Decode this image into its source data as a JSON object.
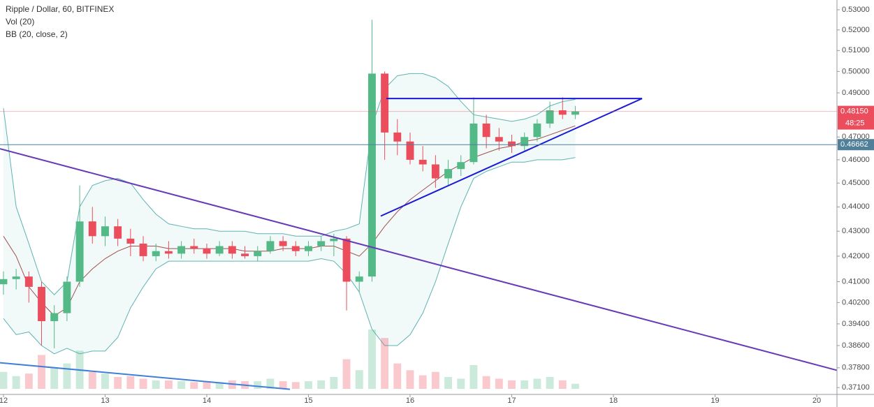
{
  "chart_data": {
    "type": "candlestick",
    "title": "Ripple / Dollar, 60, BITFINEX",
    "indicators": [
      "Vol (20)",
      "BB (20, close, 2)"
    ],
    "log_scale": true,
    "grid": false,
    "up_color": "#53b987",
    "down_color": "#eb4d5c",
    "band_color": "#5fb3b3",
    "x": [
      12.0,
      12.125,
      12.25,
      12.375,
      12.5,
      12.625,
      12.75,
      12.875,
      13.0,
      13.125,
      13.25,
      13.375,
      13.5,
      13.625,
      13.75,
      13.875,
      14.0,
      14.125,
      14.25,
      14.375,
      14.5,
      14.625,
      14.75,
      14.875,
      15.0,
      15.125,
      15.25,
      15.375,
      15.5,
      15.625,
      15.75,
      15.875,
      16.0,
      16.125,
      16.25,
      16.375,
      16.5,
      16.625,
      16.75,
      16.875,
      17.0,
      17.125,
      17.25,
      17.375,
      17.5,
      17.625
    ],
    "open": [
      0.409,
      0.411,
      0.412,
      0.408,
      0.395,
      0.398,
      0.41,
      0.434,
      0.428,
      0.432,
      0.427,
      0.425,
      0.42,
      0.422,
      0.421,
      0.424,
      0.423,
      0.421,
      0.424,
      0.421,
      0.42,
      0.422,
      0.426,
      0.424,
      0.422,
      0.424,
      0.426,
      0.427,
      0.41,
      0.412,
      0.499,
      0.472,
      0.468,
      0.46,
      0.458,
      0.452,
      0.456,
      0.459,
      0.476,
      0.47,
      0.468,
      0.466,
      0.47,
      0.476,
      0.482,
      0.48
    ],
    "high": [
      0.414,
      0.415,
      0.414,
      0.41,
      0.401,
      0.412,
      0.449,
      0.44,
      0.436,
      0.435,
      0.431,
      0.428,
      0.425,
      0.426,
      0.426,
      0.427,
      0.425,
      0.426,
      0.426,
      0.424,
      0.424,
      0.428,
      0.428,
      0.426,
      0.426,
      0.428,
      0.429,
      0.428,
      0.414,
      0.525,
      0.5,
      0.478,
      0.472,
      0.466,
      0.462,
      0.46,
      0.462,
      0.488,
      0.48,
      0.474,
      0.471,
      0.472,
      0.478,
      0.486,
      0.488,
      0.484
    ],
    "low": [
      0.405,
      0.407,
      0.402,
      0.386,
      0.385,
      0.395,
      0.408,
      0.425,
      0.424,
      0.424,
      0.42,
      0.418,
      0.418,
      0.419,
      0.419,
      0.421,
      0.419,
      0.42,
      0.419,
      0.419,
      0.418,
      0.421,
      0.422,
      0.42,
      0.42,
      0.422,
      0.42,
      0.399,
      0.406,
      0.41,
      0.46,
      0.462,
      0.458,
      0.455,
      0.448,
      0.449,
      0.453,
      0.458,
      0.465,
      0.464,
      0.463,
      0.464,
      0.468,
      0.474,
      0.478,
      0.478
    ],
    "close": [
      0.411,
      0.412,
      0.408,
      0.395,
      0.398,
      0.41,
      0.434,
      0.428,
      0.432,
      0.427,
      0.425,
      0.42,
      0.422,
      0.421,
      0.424,
      0.423,
      0.421,
      0.424,
      0.421,
      0.42,
      0.422,
      0.426,
      0.424,
      0.422,
      0.424,
      0.426,
      0.427,
      0.41,
      0.412,
      0.499,
      0.472,
      0.468,
      0.46,
      0.458,
      0.452,
      0.456,
      0.459,
      0.476,
      0.47,
      0.468,
      0.466,
      0.47,
      0.476,
      0.482,
      0.48,
      0.4815
    ],
    "volume": [
      20,
      15,
      18,
      40,
      25,
      30,
      45,
      20,
      18,
      14,
      15,
      12,
      10,
      10,
      9,
      8,
      9,
      8,
      10,
      9,
      9,
      12,
      9,
      8,
      9,
      10,
      14,
      35,
      22,
      70,
      60,
      30,
      22,
      16,
      20,
      14,
      12,
      28,
      15,
      12,
      10,
      10,
      12,
      14,
      10,
      6
    ],
    "bb_upper": [
      0.483,
      0.44,
      0.425,
      0.41,
      0.405,
      0.41,
      0.44,
      0.449,
      0.451,
      0.452,
      0.45,
      0.443,
      0.437,
      0.433,
      0.432,
      0.431,
      0.431,
      0.43,
      0.43,
      0.43,
      0.429,
      0.429,
      0.429,
      0.428,
      0.428,
      0.428,
      0.43,
      0.431,
      0.433,
      0.475,
      0.492,
      0.498,
      0.499,
      0.499,
      0.497,
      0.493,
      0.486,
      0.48,
      0.479,
      0.478,
      0.477,
      0.478,
      0.48,
      0.484,
      0.486,
      0.487
    ],
    "bb_middle": [
      0.428,
      0.42,
      0.408,
      0.402,
      0.397,
      0.4,
      0.41,
      0.415,
      0.419,
      0.422,
      0.424,
      0.424,
      0.424,
      0.423,
      0.423,
      0.423,
      0.423,
      0.423,
      0.423,
      0.422,
      0.422,
      0.422,
      0.423,
      0.423,
      0.423,
      0.424,
      0.424,
      0.422,
      0.42,
      0.425,
      0.432,
      0.438,
      0.443,
      0.447,
      0.451,
      0.455,
      0.458,
      0.461,
      0.463,
      0.465,
      0.466,
      0.468,
      0.469,
      0.471,
      0.473,
      0.475
    ],
    "bb_lower": [
      0.396,
      0.39,
      0.391,
      0.386,
      0.383,
      0.385,
      0.383,
      0.384,
      0.384,
      0.389,
      0.4,
      0.408,
      0.415,
      0.418,
      0.418,
      0.418,
      0.418,
      0.418,
      0.418,
      0.418,
      0.418,
      0.418,
      0.418,
      0.418,
      0.418,
      0.419,
      0.418,
      0.413,
      0.406,
      0.392,
      0.386,
      0.386,
      0.39,
      0.398,
      0.41,
      0.425,
      0.44,
      0.452,
      0.455,
      0.457,
      0.459,
      0.459,
      0.46,
      0.46,
      0.46,
      0.461
    ],
    "xlim": [
      11.966,
      20.199
    ],
    "xticks": [
      12,
      13,
      14,
      15,
      16,
      17,
      18,
      19,
      20
    ],
    "ylim": [
      0.3686,
      0.5349
    ],
    "yticks": [
      {
        "value": 0.53,
        "label": "0.53000"
      },
      {
        "value": 0.52,
        "label": "0.52000"
      },
      {
        "value": 0.51,
        "label": "0.51000"
      },
      {
        "value": 0.5,
        "label": "0.50000"
      },
      {
        "value": 0.49,
        "label": "0.49000"
      },
      {
        "value": 0.47,
        "label": "0.47000"
      },
      {
        "value": 0.46,
        "label": "0.46000"
      },
      {
        "value": 0.45,
        "label": "0.45000"
      },
      {
        "value": 0.44,
        "label": "0.44000"
      },
      {
        "value": 0.43,
        "label": "0.43000"
      },
      {
        "value": 0.42,
        "label": "0.42000"
      },
      {
        "value": 0.41,
        "label": "0.41000"
      },
      {
        "value": 0.402,
        "label": "0.40200"
      },
      {
        "value": 0.394,
        "label": "0.39400"
      },
      {
        "value": 0.386,
        "label": "0.38600"
      },
      {
        "value": 0.378,
        "label": "0.37800"
      },
      {
        "value": 0.371,
        "label": "0.37100"
      }
    ],
    "last_price": {
      "value": 0.4815,
      "label": "0.48150",
      "countdown": "48:25",
      "color": "#eb4d5c"
    },
    "hline": {
      "value": 0.46662,
      "label": "0.46662",
      "color": "#4f7f99"
    },
    "drawings": [
      {
        "x": [
          11.966,
          20.199
        ],
        "y": [
          0.4648,
          0.3771
        ],
        "color": "#673ab7"
      },
      {
        "x": [
          11.966,
          14.818
        ],
        "y": [
          0.3798,
          0.3704
        ],
        "color": "#3f7fd9"
      },
      {
        "x": [
          15.766,
          18.282
        ],
        "y": [
          0.4874,
          0.4874
        ],
        "color": "#1a1ad6"
      },
      {
        "x": [
          15.711,
          18.282
        ],
        "y": [
          0.4362,
          0.4874
        ],
        "color": "#1a1ad6"
      }
    ]
  }
}
